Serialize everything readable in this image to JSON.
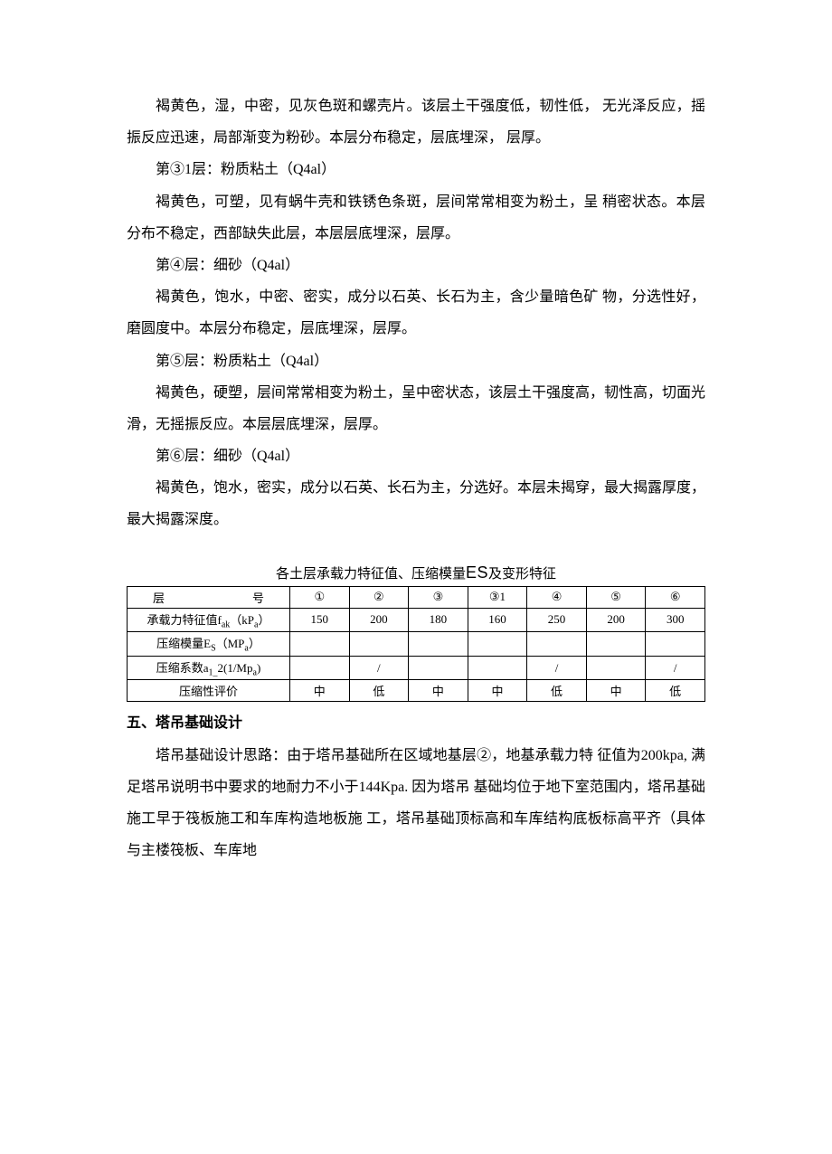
{
  "paragraphs": {
    "p1": "褐黄色，湿，中密，见灰色斑和螺壳片。该层土干强度低，韧性低，  无光泽反应，摇振反应迅速，局部渐变为粉砂。本层分布稳定，层底埋深，  层厚。",
    "p2": "第③1层：粉质粘土（Q4al）",
    "p3": "褐黄色，可塑，见有蜗牛壳和铁锈色条斑，层间常常相变为粉土，呈  稍密状态。本层分布不稳定，西部缺失此层，本层层底埋深，层厚。",
    "p4": "第④层：细砂（Q4al）",
    "p5": "褐黄色，饱水，中密、密实，成分以石英、长石为主，含少量暗色矿  物，分选性好，磨圆度中。本层分布稳定，层底埋深，层厚。",
    "p6": "第⑤层：粉质粘土（Q4al）",
    "p7": "褐黄色，硬塑，层间常常相变为粉土，呈中密状态，该层土干强度高，韧性高，切面光滑，无摇振反应。本层层底埋深，层厚。",
    "p8": "第⑥层：细砂（Q4al）",
    "p9": "褐黄色，饱水，密实，成分以石英、长石为主，分选好。本层未揭穿，最大揭露厚度，最大揭露深度。"
  },
  "table": {
    "title_prefix": "各土层承载力特征值、压缩模量",
    "title_es": "ES",
    "title_suffix": "及变形特征",
    "header_label": "层",
    "header_label2": "号",
    "columns": [
      "①",
      "②",
      "③",
      "③1",
      "④",
      "⑤",
      "⑥"
    ],
    "rows": [
      {
        "label_html": "承载力特征值f<sub>ak</sub>（kP<sub>a</sub>）",
        "values": [
          "150",
          "200",
          "180",
          "160",
          "250",
          "200",
          "300"
        ]
      },
      {
        "label_html": "压缩模量E<sub>S</sub>（MP<sub>a</sub>）",
        "values": [
          "",
          "",
          "",
          "",
          "",
          "",
          ""
        ]
      },
      {
        "label_html": "压缩系数a<sub>1_</sub>2(1/Mp<sub>a</sub>)",
        "values": [
          "",
          "/",
          "",
          "",
          "/",
          "",
          "/"
        ]
      },
      {
        "label_html": "压缩性评价",
        "values": [
          "中",
          "低",
          "中",
          "中",
          "低",
          "中",
          "低"
        ]
      }
    ]
  },
  "section5": {
    "heading": "五、塔吊基础设计",
    "body": "塔吊基础设计思路：由于塔吊基础所在区域地基层②，地基承载力特  征值为200kpa, 满足塔吊说明书中要求的地耐力不小于144Kpa. 因为塔吊  基础均位于地下室范围内，塔吊基础施工早于筏板施工和车库构造地板施  工，塔吊基础顶标高和车库结构底板标高平齐（具体与主楼筏板、车库地"
  }
}
